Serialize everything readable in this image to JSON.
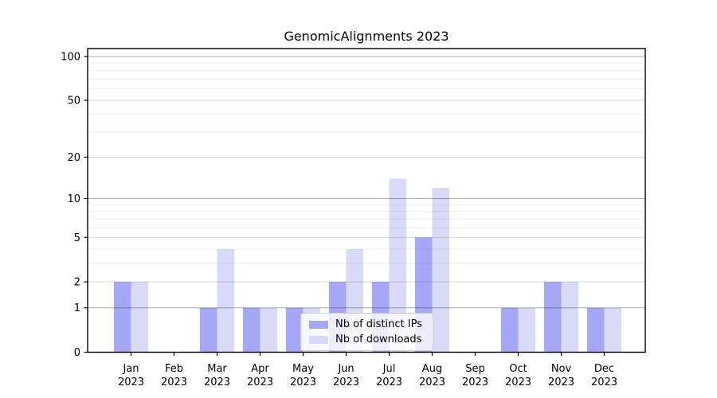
{
  "chart_data": {
    "type": "bar",
    "title": "GenomicAlignments 2023",
    "categories": [
      {
        "month": "Jan",
        "year": "2023"
      },
      {
        "month": "Feb",
        "year": "2023"
      },
      {
        "month": "Mar",
        "year": "2023"
      },
      {
        "month": "Apr",
        "year": "2023"
      },
      {
        "month": "May",
        "year": "2023"
      },
      {
        "month": "Jun",
        "year": "2023"
      },
      {
        "month": "Jul",
        "year": "2023"
      },
      {
        "month": "Aug",
        "year": "2023"
      },
      {
        "month": "Sep",
        "year": "2023"
      },
      {
        "month": "Oct",
        "year": "2023"
      },
      {
        "month": "Nov",
        "year": "2023"
      },
      {
        "month": "Dec",
        "year": "2023"
      }
    ],
    "series": [
      {
        "name": "Nb of distinct IPs",
        "color": "#a7a7f7",
        "values": [
          2,
          0,
          1,
          1,
          1,
          2,
          2,
          5,
          0,
          1,
          2,
          1
        ]
      },
      {
        "name": "Nb of downloads",
        "color": "#d9d9f8",
        "values": [
          2,
          0,
          4,
          1,
          1,
          4,
          14,
          12,
          0,
          1,
          2,
          1
        ]
      }
    ],
    "yscale": "log10(1+y)",
    "ylim": [
      0,
      113
    ],
    "y_ticks": [
      0,
      1,
      2,
      5,
      10,
      20,
      50,
      100
    ],
    "grid": {
      "on": true,
      "major_values": [
        1,
        10,
        100
      ],
      "mid_values": [
        2,
        5,
        20,
        50
      ],
      "minor_values": [
        3,
        4,
        6,
        7,
        8,
        9,
        30,
        40,
        60,
        70,
        80,
        90
      ]
    },
    "legend_position": "inside-bottom-center",
    "xlabel": "",
    "ylabel": ""
  },
  "colors": {
    "axis": "#000000",
    "grid_major": "rgba(0,0,0,0.32)",
    "grid_mid": "rgba(0,0,0,0.16)",
    "grid_minor": "rgba(0,0,0,0.07)",
    "text": "#000000"
  }
}
